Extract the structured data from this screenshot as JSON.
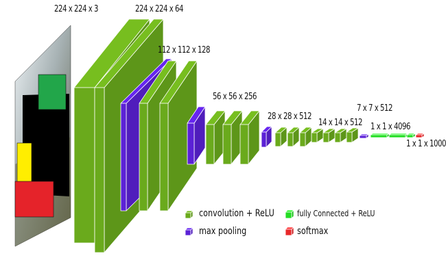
{
  "diagram": {
    "labels": {
      "input": "224 x 224 x 3",
      "conv1": "224 x 224 x 64",
      "conv2": "112 x 112 x 128",
      "conv3": "56 x 56 x 256",
      "conv4": "28 x 28 x 512",
      "conv5": "14 x 14 x 512",
      "pool5": "7 x 7 x 512",
      "fc": "1 x 1 x 4096",
      "softmax": "1 x 1 x 1000"
    },
    "legend": {
      "conv": "convolution + ReLU",
      "pool": "max pooling",
      "fc": "fully Connected + ReLU",
      "softmax": "softmax"
    },
    "colors": {
      "conv": "#6aaa1c",
      "pool": "#5b21d6",
      "fc": "#22dd22",
      "softmax": "#e8282a"
    }
  }
}
